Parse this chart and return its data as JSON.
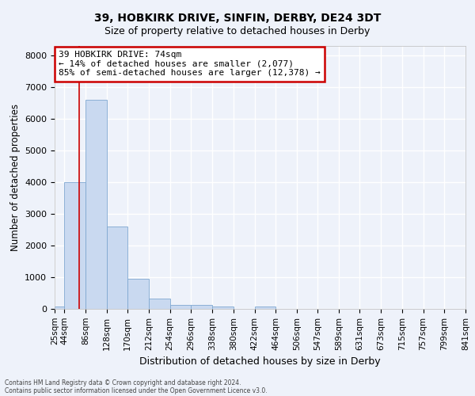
{
  "title": "39, HOBKIRK DRIVE, SINFIN, DERBY, DE24 3DT",
  "subtitle": "Size of property relative to detached houses in Derby",
  "xlabel": "Distribution of detached houses by size in Derby",
  "ylabel": "Number of detached properties",
  "bin_edges": [
    25,
    44,
    86,
    128,
    170,
    212,
    254,
    296,
    338,
    380,
    422,
    464,
    506,
    547,
    589,
    631,
    673,
    715,
    757,
    799,
    841
  ],
  "bar_heights": [
    80,
    4000,
    6600,
    2600,
    950,
    320,
    130,
    120,
    80,
    0,
    80,
    0,
    0,
    0,
    0,
    0,
    0,
    0,
    0,
    0
  ],
  "bar_color": "#c9d9f0",
  "bar_edgecolor": "#7fa8d1",
  "property_size": 74,
  "vline_color": "#cc0000",
  "annotation_line1": "39 HOBKIRK DRIVE: 74sqm",
  "annotation_line2": "← 14% of detached houses are smaller (2,077)",
  "annotation_line3": "85% of semi-detached houses are larger (12,378) →",
  "annotation_box_edgecolor": "#cc0000",
  "annotation_box_facecolor": "#ffffff",
  "ylim": [
    0,
    8300
  ],
  "yticks": [
    0,
    1000,
    2000,
    3000,
    4000,
    5000,
    6000,
    7000,
    8000
  ],
  "background_color": "#eef2fa",
  "axes_facecolor": "#eef2fa",
  "grid_color": "#ffffff",
  "tick_label_fontsize": 7.5,
  "footer_line1": "Contains HM Land Registry data © Crown copyright and database right 2024.",
  "footer_line2": "Contains public sector information licensed under the Open Government Licence v3.0."
}
